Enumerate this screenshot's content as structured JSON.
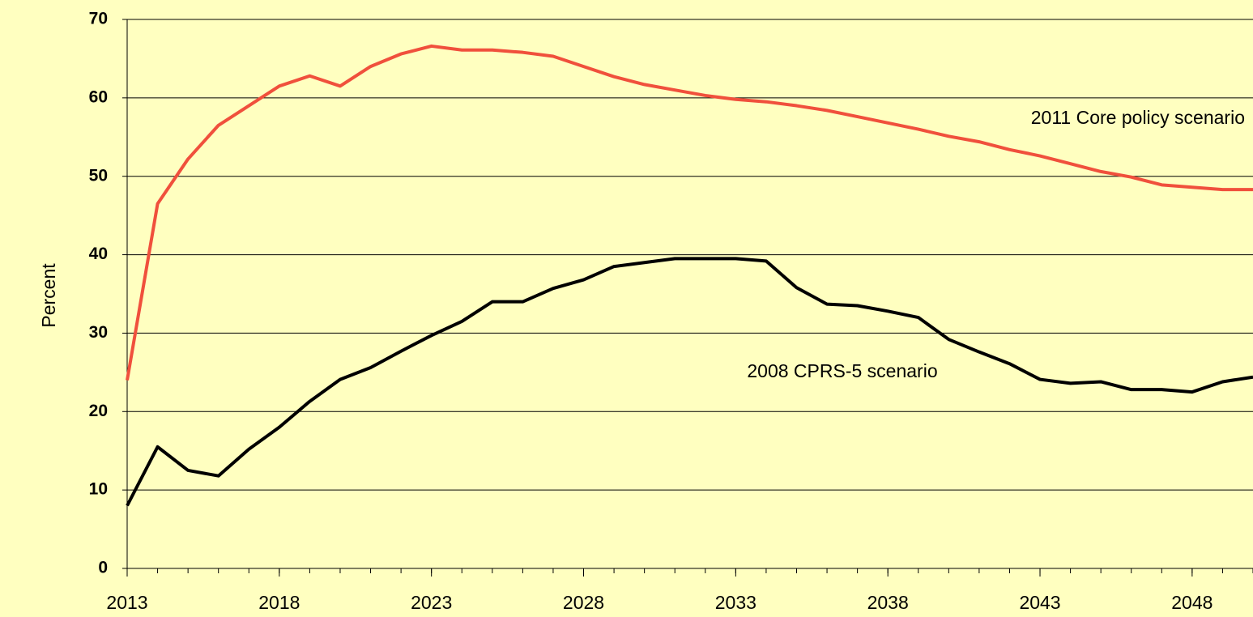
{
  "chart_data": {
    "type": "line",
    "y_label": "Percent",
    "x": [
      2013,
      2014,
      2015,
      2016,
      2017,
      2018,
      2019,
      2020,
      2021,
      2022,
      2023,
      2024,
      2025,
      2026,
      2027,
      2028,
      2029,
      2030,
      2031,
      2032,
      2033,
      2034,
      2035,
      2036,
      2037,
      2038,
      2039,
      2040,
      2041,
      2042,
      2043,
      2044,
      2045,
      2046,
      2047,
      2048,
      2049,
      2050
    ],
    "series": [
      {
        "name": "2011 Core policy scenario",
        "color": "#f0503c",
        "values": [
          24,
          46.5,
          52.2,
          56.5,
          59,
          61.5,
          62.8,
          61.5,
          64,
          65.6,
          66.6,
          66.1,
          66.1,
          65.8,
          65.3,
          64,
          62.7,
          61.7,
          61,
          60.3,
          59.8,
          59.5,
          59,
          58.4,
          57.6,
          56.8,
          56,
          55.1,
          54.4,
          53.4,
          52.6,
          51.6,
          50.6,
          49.9,
          48.9,
          48.6,
          48.3,
          48.3
        ]
      },
      {
        "name": "2008 CPRS-5 scenario",
        "color": "#000000",
        "values": [
          8,
          15.5,
          12.5,
          11.8,
          15.2,
          18,
          21.3,
          24.1,
          25.6,
          27.7,
          29.7,
          31.5,
          34,
          34,
          35.7,
          36.8,
          38.5,
          39,
          39.5,
          39.5,
          39.5,
          39.2,
          35.8,
          33.7,
          33.5,
          32.8,
          32,
          29.2,
          27.6,
          26.1,
          24.1,
          23.6,
          23.8,
          22.8,
          22.8,
          22.5,
          23.8,
          24.4
        ]
      }
    ],
    "xlim": [
      2013,
      2050
    ],
    "xticks": [
      2013,
      2018,
      2023,
      2028,
      2033,
      2038,
      2043,
      2048
    ],
    "ylim": [
      0,
      70
    ],
    "yticks": [
      0,
      10,
      20,
      30,
      40,
      50,
      60,
      70
    ],
    "grid": true
  }
}
